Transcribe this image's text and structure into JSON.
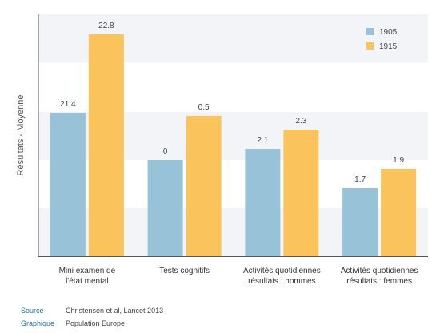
{
  "chart_data": {
    "type": "bar",
    "ylabel": "Résultats - Moyenne",
    "categories": [
      [
        "Mini examen de",
        "l'état mental"
      ],
      [
        "Tests cognitifs"
      ],
      [
        "Activités quotidiennes",
        "résultats : hommes"
      ],
      [
        "Activités quotidiennes",
        "résultats : femmes"
      ]
    ],
    "series": [
      {
        "name": "1905",
        "color": "#97c2d8",
        "values": [
          21.4,
          0,
          2.1,
          1.7
        ]
      },
      {
        "name": "1915",
        "color": "#fac35b",
        "values": [
          22.8,
          0.5,
          2.3,
          1.9
        ]
      }
    ],
    "legend_position": "top-right",
    "grid": "horizontal bands"
  },
  "credits": {
    "source_label": "Source",
    "source_value": "Christensen et al, Lancet 2013",
    "graphic_label": "Graphique",
    "graphic_value": "Population Europe"
  }
}
